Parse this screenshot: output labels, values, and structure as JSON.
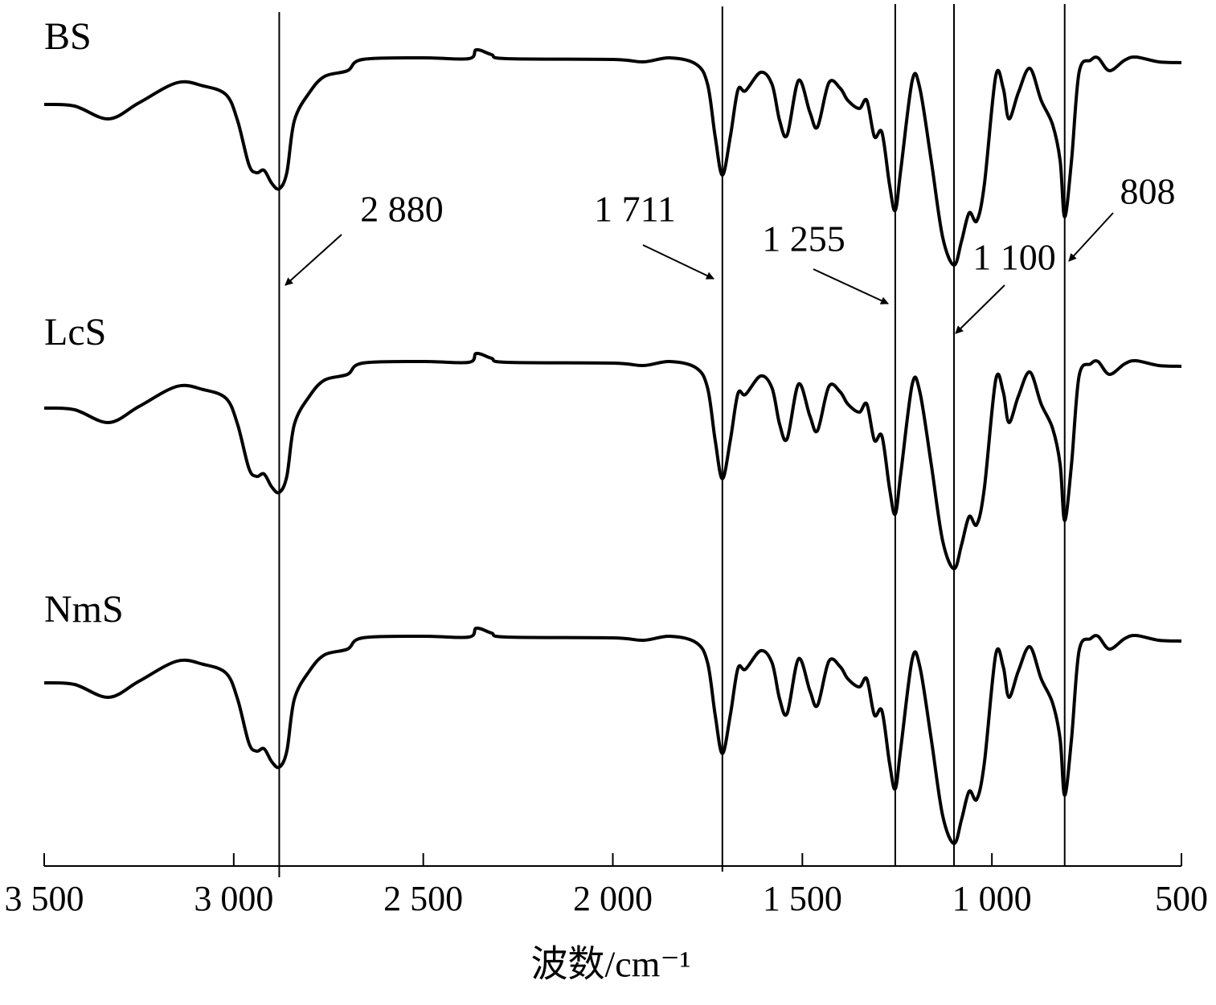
{
  "chart_data": {
    "type": "line",
    "xlabel": "波数/cm⁻¹",
    "xlim": [
      3500,
      500
    ],
    "xticks": [
      {
        "value": 3500,
        "label": "3 500"
      },
      {
        "value": 3000,
        "label": "3 000"
      },
      {
        "value": 2500,
        "label": "2 500"
      },
      {
        "value": 2000,
        "label": "2 000"
      },
      {
        "value": 1500,
        "label": "1 500"
      },
      {
        "value": 1000,
        "label": "1 000"
      },
      500
    ],
    "ylim": [
      0,
      1078
    ],
    "annotations": [
      {
        "value": 2880,
        "label": "2 880"
      },
      {
        "value": 1711,
        "label": "1 711"
      },
      {
        "value": 1255,
        "label": "1 255"
      },
      {
        "value": 1100,
        "label": "1 100"
      },
      808
    ],
    "x": [
      3500,
      3420,
      3330,
      3250,
      3150,
      3080,
      3020,
      2990,
      2960,
      2940,
      2920,
      2900,
      2880,
      2860,
      2840,
      2800,
      2760,
      2700,
      2660,
      2500,
      2380,
      2360,
      2320,
      2280,
      2000,
      1920,
      1850,
      1780,
      1750,
      1730,
      1711,
      1690,
      1670,
      1650,
      1610,
      1580,
      1560,
      1540,
      1510,
      1480,
      1460,
      1430,
      1400,
      1380,
      1350,
      1330,
      1310,
      1290,
      1270,
      1255,
      1240,
      1210,
      1190,
      1160,
      1130,
      1100,
      1080,
      1060,
      1040,
      1020,
      990,
      970,
      955,
      930,
      900,
      870,
      840,
      820,
      808,
      790,
      770,
      740,
      720,
      690,
      650,
      620,
      560,
      500
    ],
    "series": [
      {
        "name": "BS",
        "color": "#000000",
        "values": [
          948,
          946,
          930,
          950,
          975,
          971,
          960,
          928,
          873,
          863,
          866,
          850,
          843,
          863,
          928,
          963,
          983,
          990,
          1004,
          1006,
          1005,
          1016,
          1010,
          1005,
          1004,
          1001,
          1006,
          998,
          973,
          908,
          860,
          908,
          966,
          965,
          988,
          973,
          928,
          910,
          978,
          938,
          920,
          975,
          968,
          953,
          943,
          953,
          908,
          913,
          848,
          816,
          868,
          978,
          968,
          878,
          783,
          748,
          778,
          813,
          803,
          848,
          983,
          968,
          930,
          963,
          993,
          953,
          923,
          878,
          808,
          878,
          988,
          1003,
          1006,
          990,
          1003,
          1007,
          1001,
          1000
        ]
      },
      {
        "name": "LcS",
        "color": "#000000",
        "values": [
          570,
          568,
          552,
          572,
          597,
          593,
          582,
          550,
          495,
          485,
          488,
          472,
          465,
          485,
          550,
          585,
          605,
          612,
          626,
          628,
          627,
          638,
          632,
          627,
          626,
          623,
          628,
          620,
          595,
          530,
          482,
          530,
          588,
          587,
          610,
          595,
          550,
          532,
          600,
          560,
          542,
          597,
          590,
          575,
          565,
          575,
          530,
          535,
          470,
          438,
          490,
          600,
          590,
          500,
          405,
          370,
          400,
          435,
          425,
          470,
          605,
          590,
          552,
          585,
          615,
          575,
          545,
          500,
          430,
          500,
          610,
          625,
          628,
          612,
          625,
          629,
          623,
          622
        ]
      },
      {
        "name": "NmS",
        "color": "#000000",
        "values": [
          228,
          226,
          210,
          230,
          255,
          251,
          240,
          208,
          153,
          143,
          146,
          130,
          123,
          143,
          208,
          243,
          263,
          270,
          284,
          286,
          285,
          296,
          290,
          285,
          284,
          281,
          286,
          278,
          253,
          188,
          140,
          188,
          246,
          245,
          268,
          253,
          208,
          190,
          258,
          218,
          200,
          255,
          248,
          233,
          223,
          233,
          188,
          193,
          128,
          96,
          148,
          258,
          248,
          158,
          63,
          28,
          58,
          93,
          83,
          128,
          263,
          248,
          210,
          243,
          273,
          233,
          203,
          158,
          88,
          158,
          268,
          283,
          286,
          270,
          283,
          287,
          281,
          280
        ]
      }
    ]
  }
}
